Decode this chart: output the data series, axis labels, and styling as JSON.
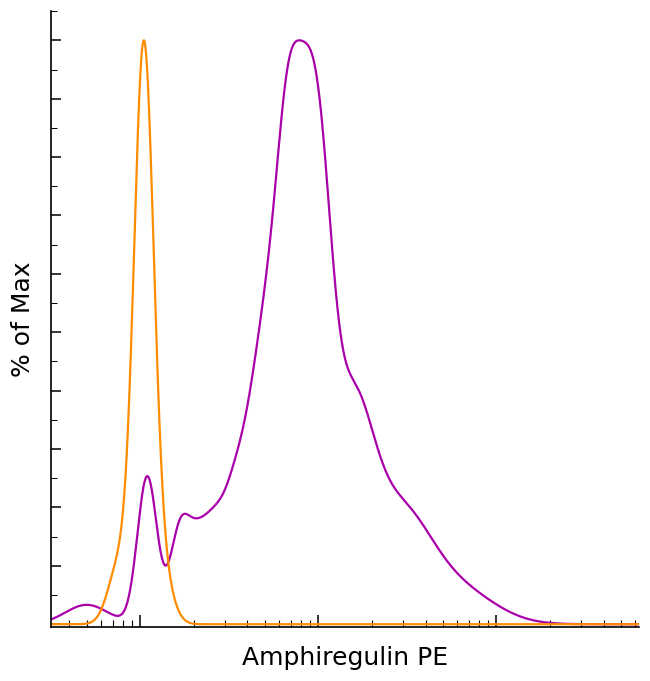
{
  "title": "",
  "xlabel": "Amphiregulin PE",
  "ylabel": "% of Max",
  "xlabel_fontsize": 18,
  "ylabel_fontsize": 18,
  "orange_color": "#FF8C00",
  "purple_color": "#AA00AA",
  "line_width": 1.6,
  "background_color": "#FFFFFF",
  "xlim_log": [
    2.5,
    5.8
  ],
  "ylim": [
    -0.005,
    1.05
  ],
  "figsize": [
    6.5,
    6.81
  ],
  "dpi": 100
}
